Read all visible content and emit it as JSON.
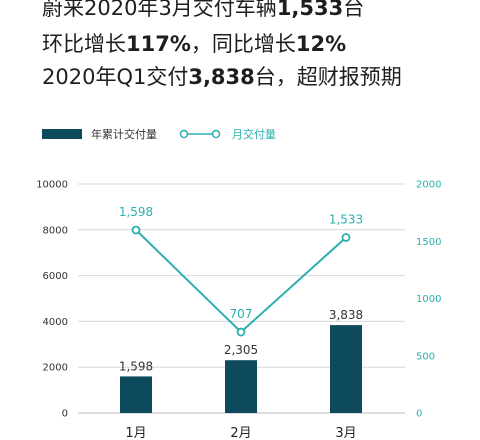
{
  "headline": {
    "line1": {
      "a": "蔚来2020年3月交付车辆",
      "b": "1,533",
      "c": "台"
    },
    "line2": {
      "a": "环比增长",
      "b": "117%",
      "c": "，同比增长",
      "d": "12%"
    },
    "line3": {
      "a": "2020年Q1交付",
      "b": "3,838",
      "c": "台，超财报预期"
    }
  },
  "colors": {
    "bar": "#0d4a5e",
    "line": "#2bb0ae",
    "grid": "#d8d8d8"
  },
  "chart_data": {
    "type": "bar+line",
    "categories": [
      "1月",
      "2月",
      "3月"
    ],
    "series": [
      {
        "name": "年累计交付量",
        "type": "bar",
        "axis": "left",
        "values": [
          1598,
          2305,
          3838
        ],
        "labels": [
          "1,598",
          "2,305",
          "3,838"
        ]
      },
      {
        "name": "月交付量",
        "type": "line",
        "axis": "right",
        "values": [
          1598,
          707,
          1533
        ],
        "labels": [
          "1,598",
          "707",
          "1,533"
        ]
      }
    ],
    "y_left": {
      "min": 0,
      "max": 10000,
      "ticks": [
        0,
        2000,
        4000,
        6000,
        8000,
        10000
      ],
      "tick_labels": [
        "0",
        "2000",
        "4000",
        "6000",
        "8000",
        "10000"
      ]
    },
    "y_right": {
      "min": 0,
      "max": 2000,
      "ticks": [
        0,
        500,
        1000,
        1500,
        2000
      ],
      "tick_labels": [
        "0",
        "500",
        "1000",
        "1500",
        "2000"
      ]
    },
    "grid": true,
    "legend": "top-left"
  }
}
